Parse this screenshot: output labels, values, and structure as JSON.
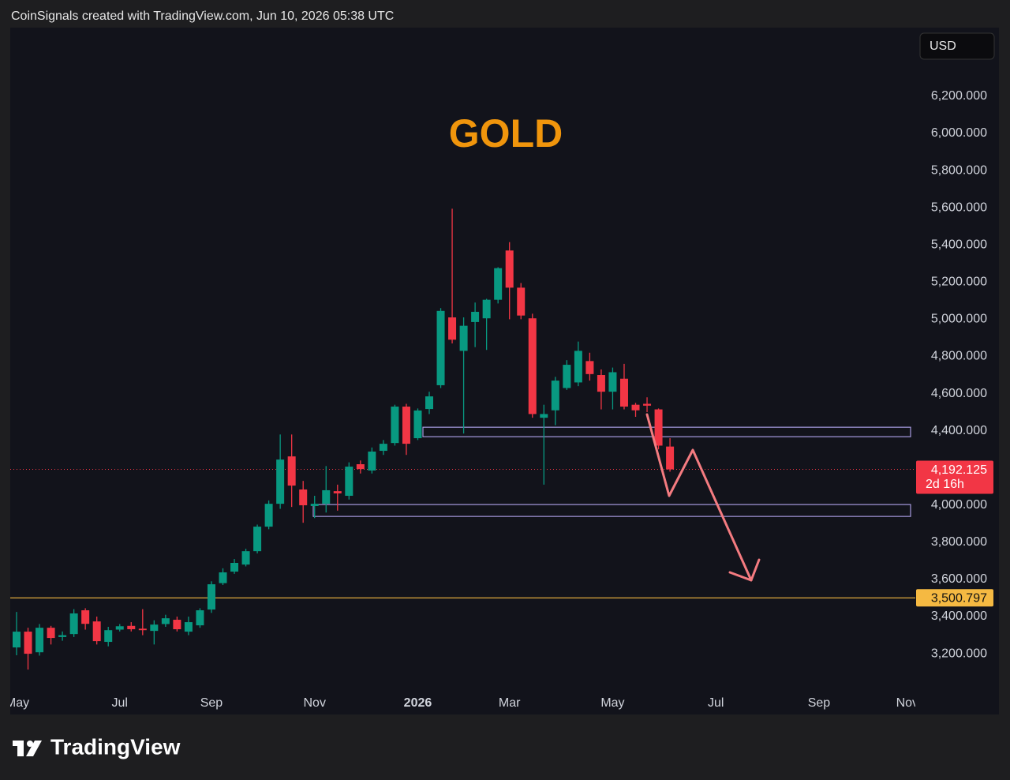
{
  "header": "CoinSignals created with TradingView.com, Jun 10, 2026 05:38 UTC",
  "currency": "USD",
  "brand": "TradingView",
  "chart_data": {
    "type": "candlestick",
    "title": "GOLD",
    "up_color": "#089981",
    "down_color": "#f23645",
    "open": [
      3234,
      3319,
      3208,
      3340,
      3290,
      3306,
      3434,
      3374,
      3264,
      3330,
      3350,
      3335,
      3323,
      3360,
      3383,
      3319,
      3353,
      3438,
      3580,
      3642,
      3680,
      3752,
      3884,
      4007,
      4262,
      4084,
      3995,
      4007,
      4075,
      4050,
      4220,
      4186,
      4292,
      4334,
      4530,
      4360,
      4517,
      4645,
      5010,
      4830,
      4985,
      5005,
      5105,
      5370,
      5170,
      5005,
      4470,
      4510,
      4630,
      4660,
      4775,
      4700,
      4610,
      4680,
      4540,
      4545,
      4515,
      4315
    ],
    "high": [
      3425,
      3340,
      3360,
      3350,
      3320,
      3440,
      3445,
      3400,
      3345,
      3360,
      3370,
      3440,
      3380,
      3410,
      3400,
      3400,
      3445,
      3590,
      3660,
      3710,
      3765,
      3895,
      4025,
      4380,
      4380,
      4130,
      4050,
      4210,
      4110,
      4230,
      4240,
      4310,
      4350,
      4540,
      4545,
      4520,
      4610,
      5060,
      5595,
      5010,
      5090,
      5110,
      5280,
      5415,
      5195,
      5030,
      4540,
      4690,
      4780,
      4880,
      4820,
      4730,
      4740,
      4760,
      4550,
      4580,
      4520,
      4360
    ],
    "low": [
      3192,
      3115,
      3190,
      3250,
      3270,
      3290,
      3330,
      3250,
      3240,
      3320,
      3320,
      3300,
      3250,
      3345,
      3320,
      3300,
      3340,
      3420,
      3570,
      3630,
      3670,
      3740,
      3870,
      3980,
      3990,
      3905,
      3930,
      3960,
      3970,
      4030,
      4170,
      4170,
      4270,
      4320,
      4270,
      4350,
      4490,
      4630,
      4870,
      4385,
      4850,
      4835,
      5085,
      5000,
      5000,
      4470,
      4110,
      4430,
      4620,
      4640,
      4670,
      4515,
      4515,
      4515,
      4475,
      4500,
      4300,
      4180
    ],
    "close": [
      3319,
      3200,
      3340,
      3285,
      3300,
      3417,
      3361,
      3268,
      3327,
      3348,
      3332,
      3327,
      3357,
      3391,
      3332,
      3370,
      3434,
      3574,
      3638,
      3689,
      3752,
      3884,
      4007,
      4245,
      4105,
      3999,
      4007,
      4080,
      4063,
      4207,
      4194,
      4288,
      4330,
      4530,
      4330,
      4509,
      4585,
      5045,
      4890,
      4965,
      5040,
      5105,
      5275,
      5170,
      5020,
      4490,
      4490,
      4670,
      4755,
      4830,
      4705,
      4610,
      4715,
      4530,
      4510,
      4535,
      4320,
      4192.125
    ],
    "xlim": [
      -0.55,
      78.4
    ],
    "xticks": [
      {
        "value": 0.07,
        "label": "May"
      },
      {
        "value": 9,
        "label": "Jul"
      },
      {
        "value": 17,
        "label": "Sep"
      },
      {
        "value": 26,
        "label": "Nov"
      },
      {
        "value": 35,
        "label": "2026"
      },
      {
        "value": 43,
        "label": "Mar"
      },
      {
        "value": 52,
        "label": "May"
      },
      {
        "value": 61,
        "label": "Jul"
      },
      {
        "value": 70,
        "label": "Sep"
      },
      {
        "value": 77.7,
        "label": "Nov"
      }
    ],
    "ylim": [
      3022,
      6548
    ],
    "yticks": [
      {
        "value": 3200,
        "label": "3,200.000"
      },
      {
        "value": 3400,
        "label": "3,400.000"
      },
      {
        "value": 3600,
        "label": "3,600.000"
      },
      {
        "value": 3800,
        "label": "3,800.000"
      },
      {
        "value": 4000,
        "label": "4,000.000"
      },
      {
        "value": 4200,
        "label": "4,200.000"
      },
      {
        "value": 4400,
        "label": "4,400.000"
      },
      {
        "value": 4600,
        "label": "4,600.000"
      },
      {
        "value": 4800,
        "label": "4,800.000"
      },
      {
        "value": 5000,
        "label": "5,000.000"
      },
      {
        "value": 5200,
        "label": "5,200.000"
      },
      {
        "value": 5400,
        "label": "5,400.000"
      },
      {
        "value": 5600,
        "label": "5,600.000"
      },
      {
        "value": 5800,
        "label": "5,800.000"
      },
      {
        "value": 6000,
        "label": "6,000.000"
      },
      {
        "value": 6200,
        "label": "6,200.000"
      }
    ],
    "grid": false,
    "last_price": {
      "value": 4192.125,
      "label": "4,192.125",
      "countdown": "2d 16h"
    },
    "level": {
      "value": 3500.797,
      "label": "3,500.797",
      "color": "#f5b942"
    },
    "zones": [
      [
        4368,
        4419
      ],
      [
        3939,
        4003
      ]
    ]
  }
}
